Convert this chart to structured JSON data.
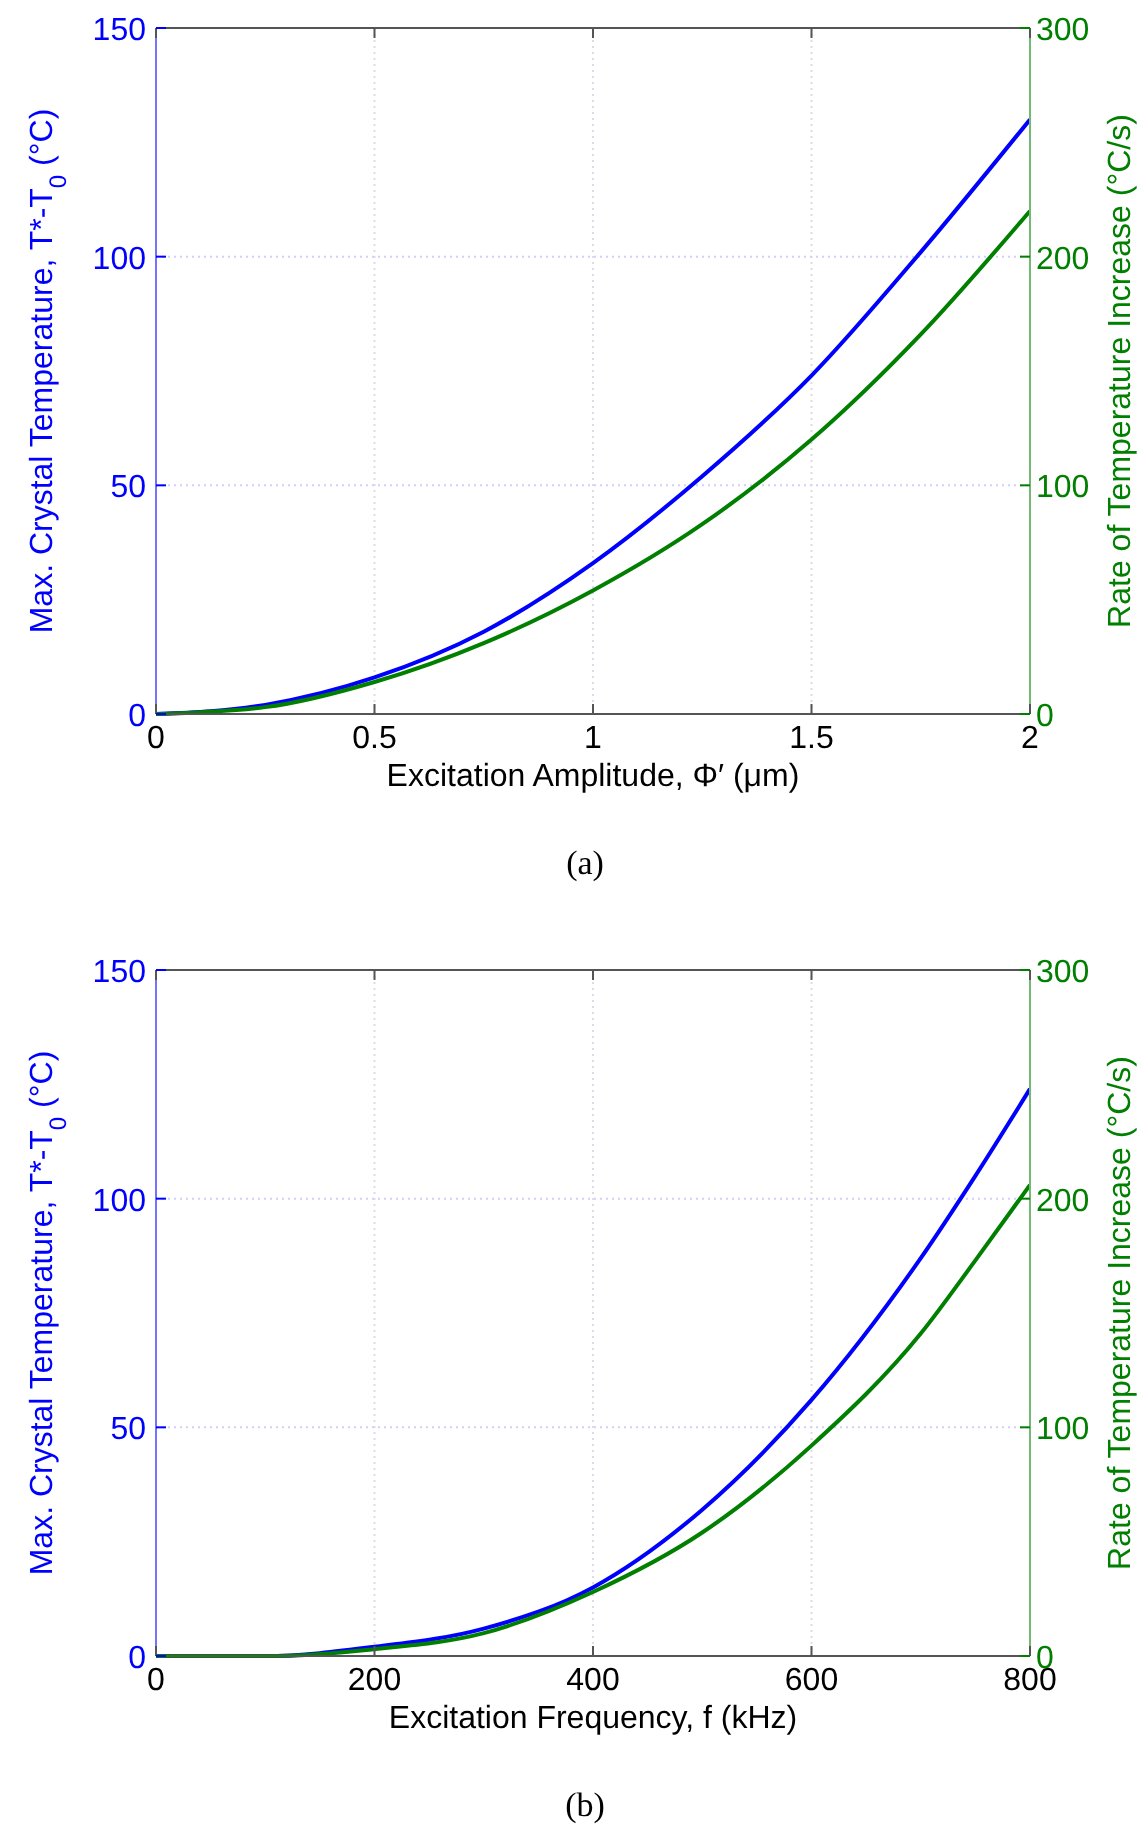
{
  "chart_data": [
    {
      "type": "line",
      "xlabel": "Excitation Amplitude, Φ′ (μm)",
      "ylabel": "Max. Crystal Temperature, T*-T$_{0}$ (°C)",
      "y2label": "Rate of Temperature Increase (°C/s)",
      "annotations": [
        "(a)"
      ],
      "x": [
        0,
        0.25,
        0.5,
        0.75,
        1,
        1.25,
        1.5,
        1.75,
        2
      ],
      "series": [
        {
          "color": "#0000ff",
          "values": [
            0,
            2,
            8,
            18,
            33,
            52,
            74,
            101,
            130
          ]
        },
        {
          "color": "#007f00",
          "axis": "y2",
          "values": [
            0,
            3,
            14,
            31,
            54,
            83,
            120,
            166,
            220
          ]
        }
      ],
      "xlim": [
        0,
        2
      ],
      "xticks": [
        0,
        0.5,
        1,
        1.5,
        2
      ],
      "ylim": [
        0,
        150
      ],
      "yticks": [
        0,
        50,
        100,
        150
      ],
      "y2lim": [
        0,
        300
      ],
      "y2ticks": [
        0,
        100,
        200,
        300
      ],
      "grid": true
    },
    {
      "type": "line",
      "xlabel": "Excitation Frequency, f (kHz)",
      "ylabel": "Max. Crystal Temperature, T*-T$_{0}$ (°C)",
      "y2label": "Rate of Temperature Increase (°C/s)",
      "annotations": [
        "(b)"
      ],
      "x": [
        0,
        100,
        200,
        300,
        400,
        500,
        600,
        700,
        750,
        800
      ],
      "series": [
        {
          "color": "#0000ff",
          "values": [
            0,
            0,
            2,
            6,
            15,
            32,
            56,
            87,
            105,
            124
          ]
        },
        {
          "color": "#007f00",
          "axis": "y2",
          "values": [
            0,
            0,
            3,
            10,
            28,
            54,
            92,
            141,
            173,
            206
          ]
        }
      ],
      "xlim": [
        0,
        800
      ],
      "xticks": [
        0,
        200,
        400,
        600,
        800
      ],
      "ylim": [
        0,
        150
      ],
      "yticks": [
        0,
        50,
        100,
        150
      ],
      "y2lim": [
        0,
        300
      ],
      "y2ticks": [
        0,
        100,
        200,
        300
      ],
      "grid": true
    }
  ]
}
